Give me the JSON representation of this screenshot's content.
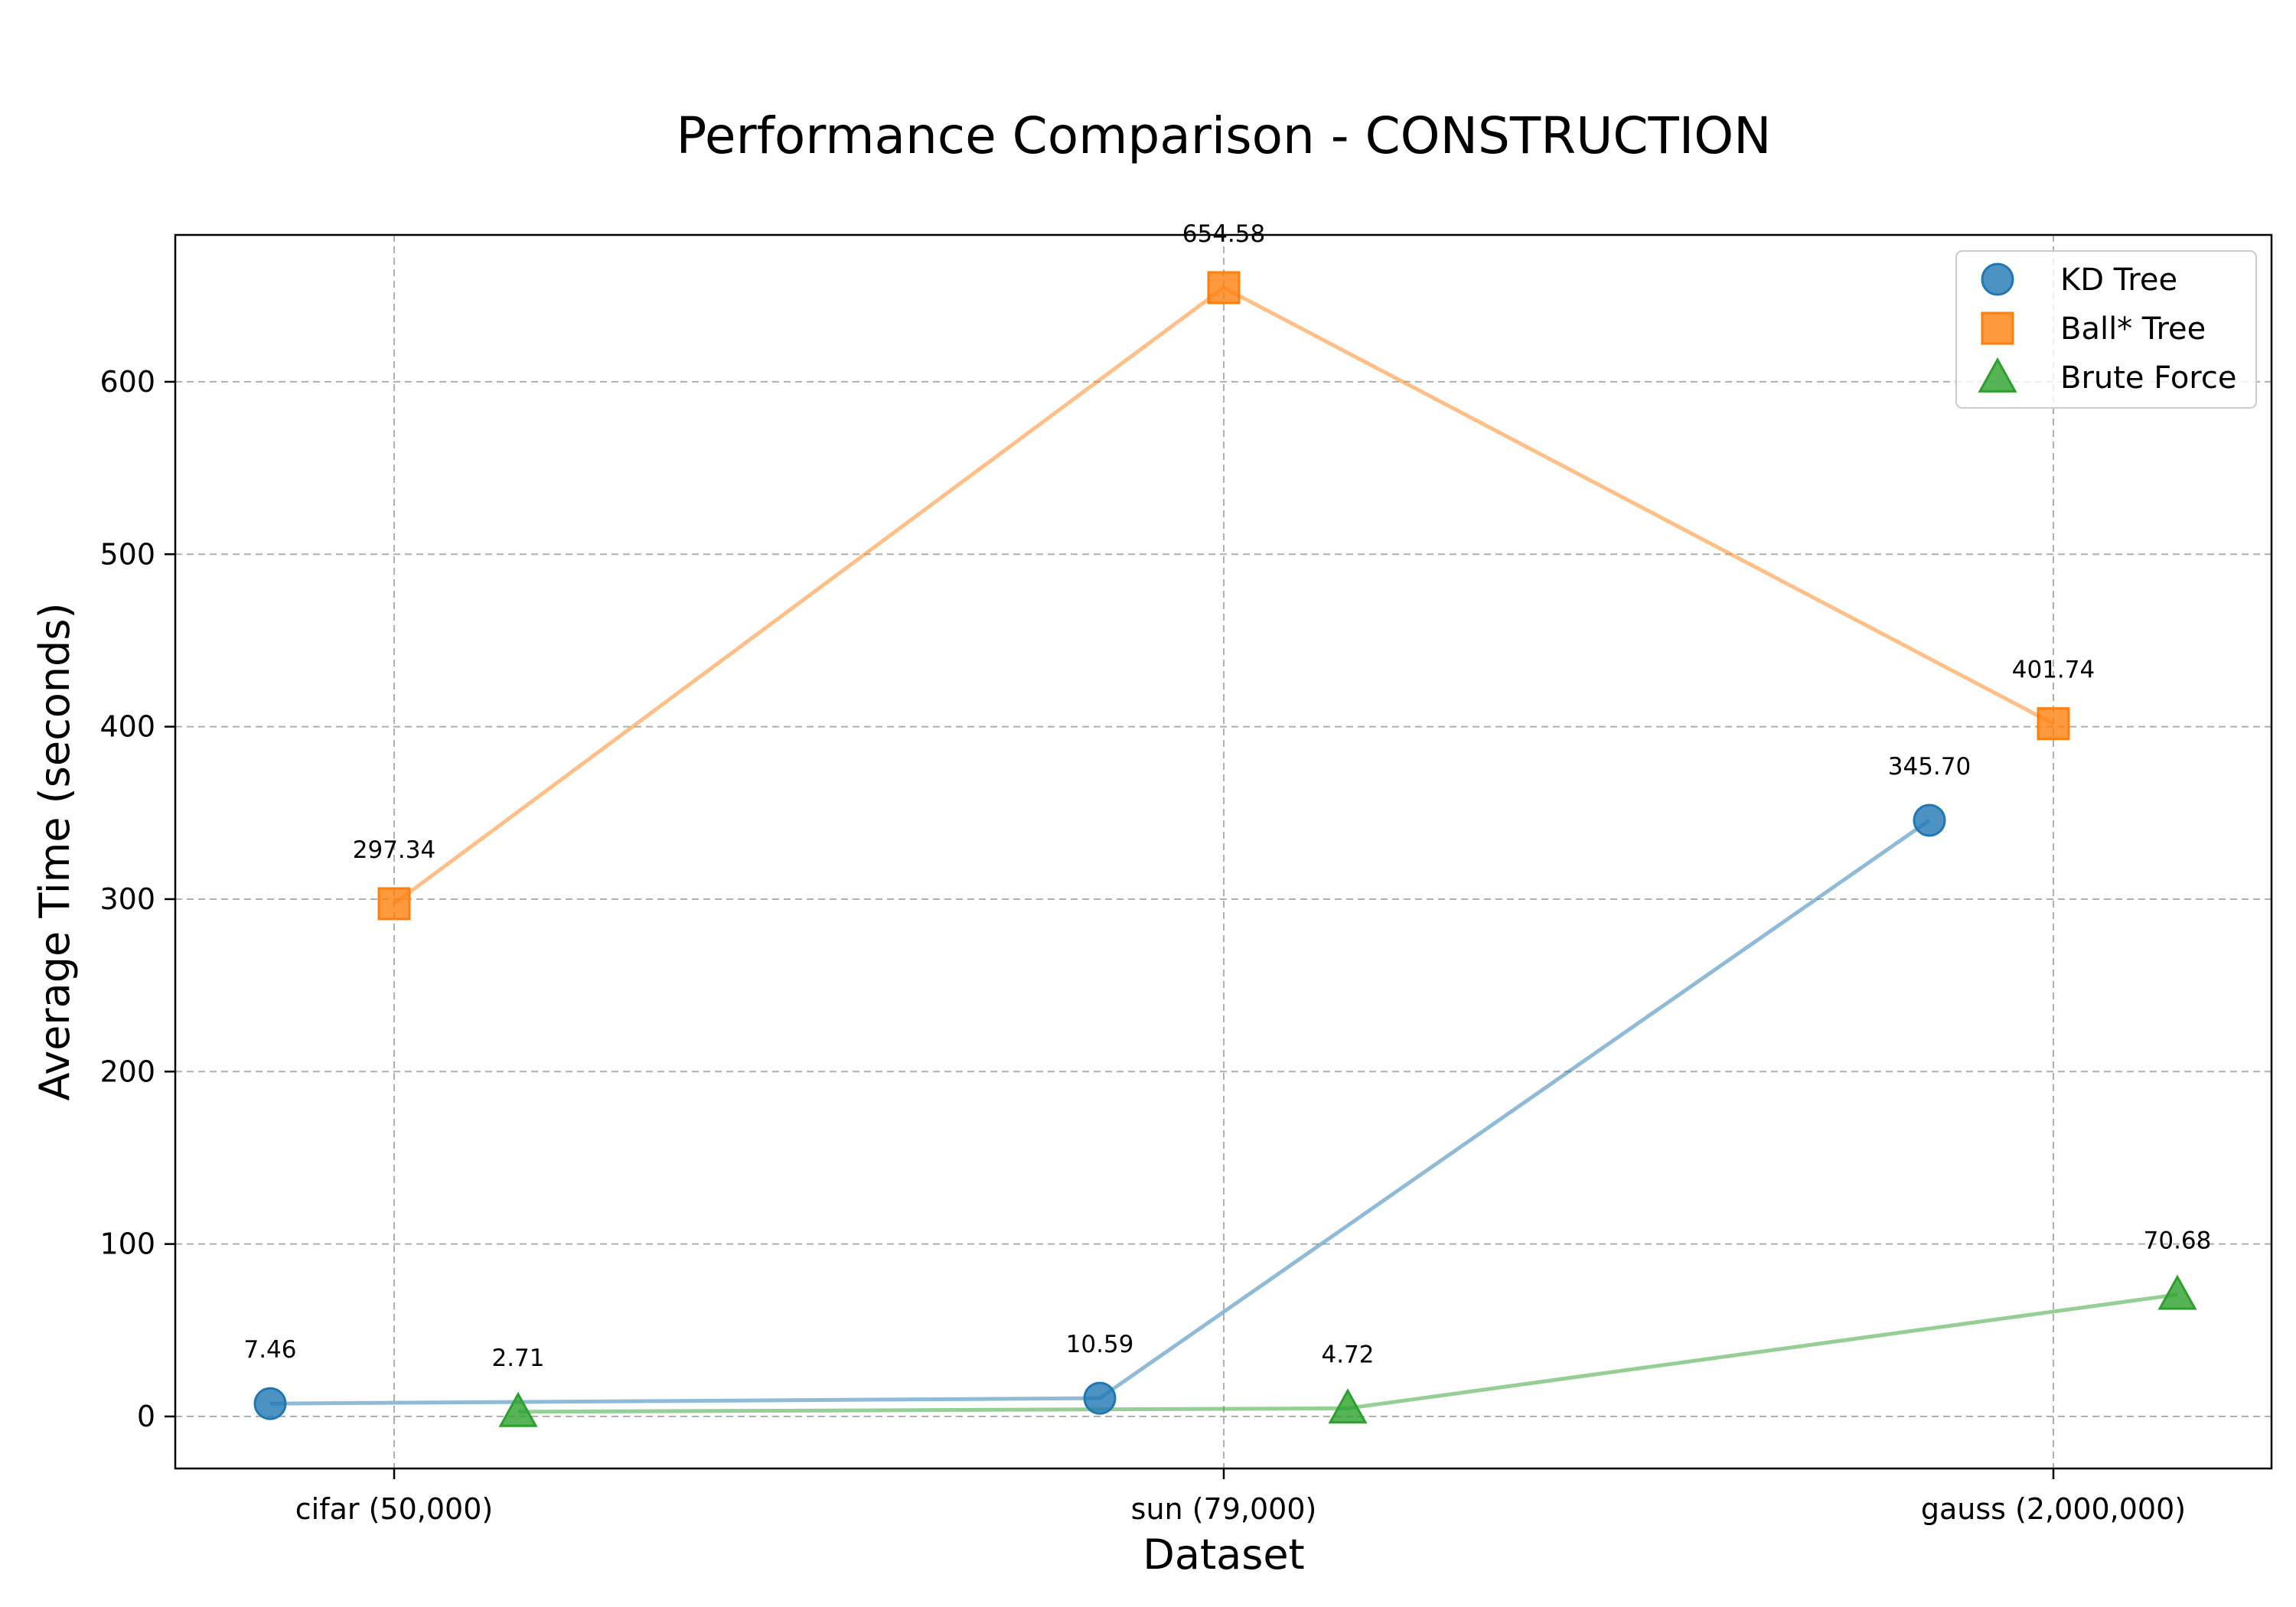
{
  "chart_data": {
    "type": "line",
    "title": "Performance Comparison - CONSTRUCTION",
    "xlabel": "Dataset",
    "ylabel": "Average Time (seconds)",
    "categories": [
      "cifar (50,000)",
      "sun (79,000)",
      "gauss (2,000,000)"
    ],
    "ylim": [
      -30,
      687
    ],
    "yticks": [
      0,
      100,
      200,
      300,
      400,
      500,
      600
    ],
    "grid": true,
    "legend_position": "top-right",
    "series": [
      {
        "name": "KD Tree",
        "marker": "circle",
        "color": "#1f77b4",
        "values": [
          7.46,
          10.59,
          345.7
        ],
        "labels": [
          "7.46",
          "10.59",
          "345.70"
        ]
      },
      {
        "name": "Ball* Tree",
        "marker": "square",
        "color": "#ff7f0e",
        "values": [
          297.34,
          654.58,
          401.74
        ],
        "labels": [
          "297.34",
          "654.58",
          "401.74"
        ]
      },
      {
        "name": "Brute Force",
        "marker": "triangle",
        "color": "#2ca02c",
        "values": [
          2.71,
          4.72,
          70.68
        ],
        "labels": [
          "2.71",
          "4.72",
          "70.68"
        ]
      }
    ]
  }
}
